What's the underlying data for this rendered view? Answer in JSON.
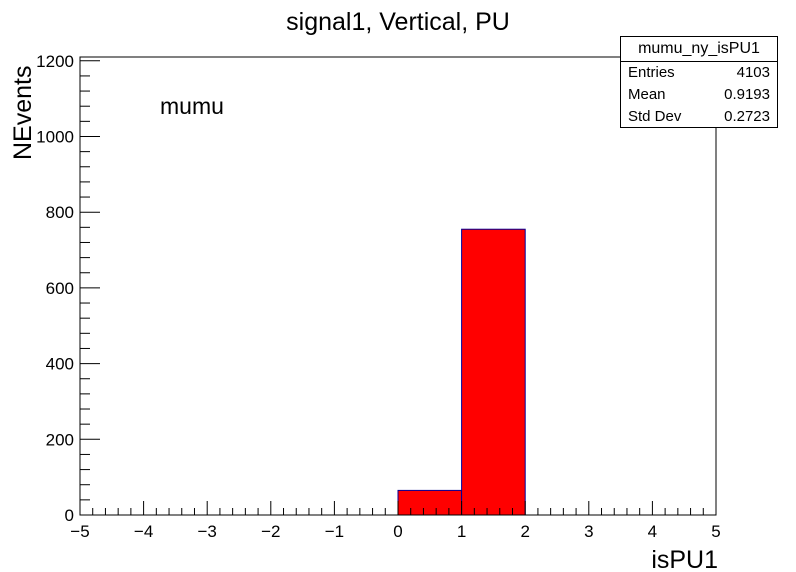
{
  "chart_data": {
    "type": "bar",
    "title": "signal1, Vertical, PU",
    "xlabel": "isPU1",
    "ylabel": "NEvents",
    "xlim": [
      -5,
      5
    ],
    "ylim": [
      0,
      1210
    ],
    "x_ticks": [
      "−5",
      "−4",
      "−3",
      "−2",
      "−1",
      "0",
      "1",
      "2",
      "3",
      "4",
      "5"
    ],
    "y_ticks": [
      "0",
      "200",
      "400",
      "600",
      "800",
      "1000",
      "1200"
    ],
    "bins": [
      {
        "low": 0,
        "high": 1,
        "value": 65
      },
      {
        "low": 1,
        "high": 2,
        "value": 755
      }
    ],
    "annotation": "mumu",
    "bar_fill": "#ff0000",
    "bar_edge": "#000099",
    "grid": false
  },
  "stats": {
    "title": "mumu_ny_isPU1",
    "rows": [
      {
        "label": "Entries",
        "value": "4103"
      },
      {
        "label": "Mean",
        "value": "0.9193"
      },
      {
        "label": "Std Dev",
        "value": "0.2723"
      }
    ]
  }
}
